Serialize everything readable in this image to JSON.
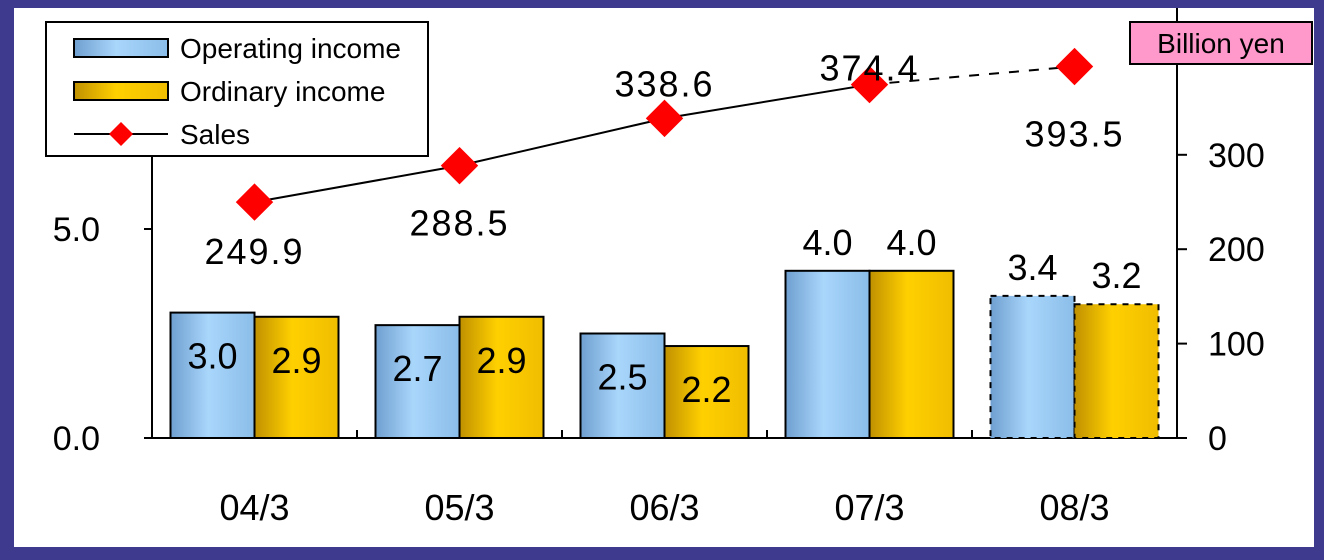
{
  "chart_data": {
    "type": "bar",
    "categories": [
      "04/3",
      "05/3",
      "06/3",
      "07/3",
      "08/3"
    ],
    "series": [
      {
        "name": "Operating income",
        "type": "bar",
        "axis": "left",
        "values": [
          3.0,
          2.7,
          2.5,
          4.0,
          3.4
        ],
        "labels": [
          "3.0",
          "2.7",
          "2.5",
          "4.0",
          "3.4"
        ],
        "color": "#8fc3f0"
      },
      {
        "name": "Ordinary income",
        "type": "bar",
        "axis": "left",
        "values": [
          2.9,
          2.9,
          2.2,
          4.0,
          3.2
        ],
        "labels": [
          "2.9",
          "2.9",
          "2.2",
          "4.0",
          "3.2"
        ],
        "color": "#f5c000"
      },
      {
        "name": "Sales",
        "type": "line",
        "axis": "right",
        "marker": "diamond",
        "values": [
          249.9,
          288.5,
          338.6,
          374.4,
          393.5
        ],
        "labels": [
          "249.9",
          "288.5",
          "338.6",
          "374.4",
          "393.5"
        ],
        "color": "#ff0000"
      }
    ],
    "forecast_categories": [
      "08/3"
    ],
    "y_left": {
      "ticks": [
        "0.0",
        "5.0"
      ],
      "ylim": [
        0,
        10
      ]
    },
    "y_right": {
      "ticks": [
        "0",
        "100",
        "200",
        "300"
      ],
      "ylim": [
        0,
        400
      ]
    },
    "unit_label": "Billion yen",
    "legend": "top-left",
    "grid": false
  }
}
